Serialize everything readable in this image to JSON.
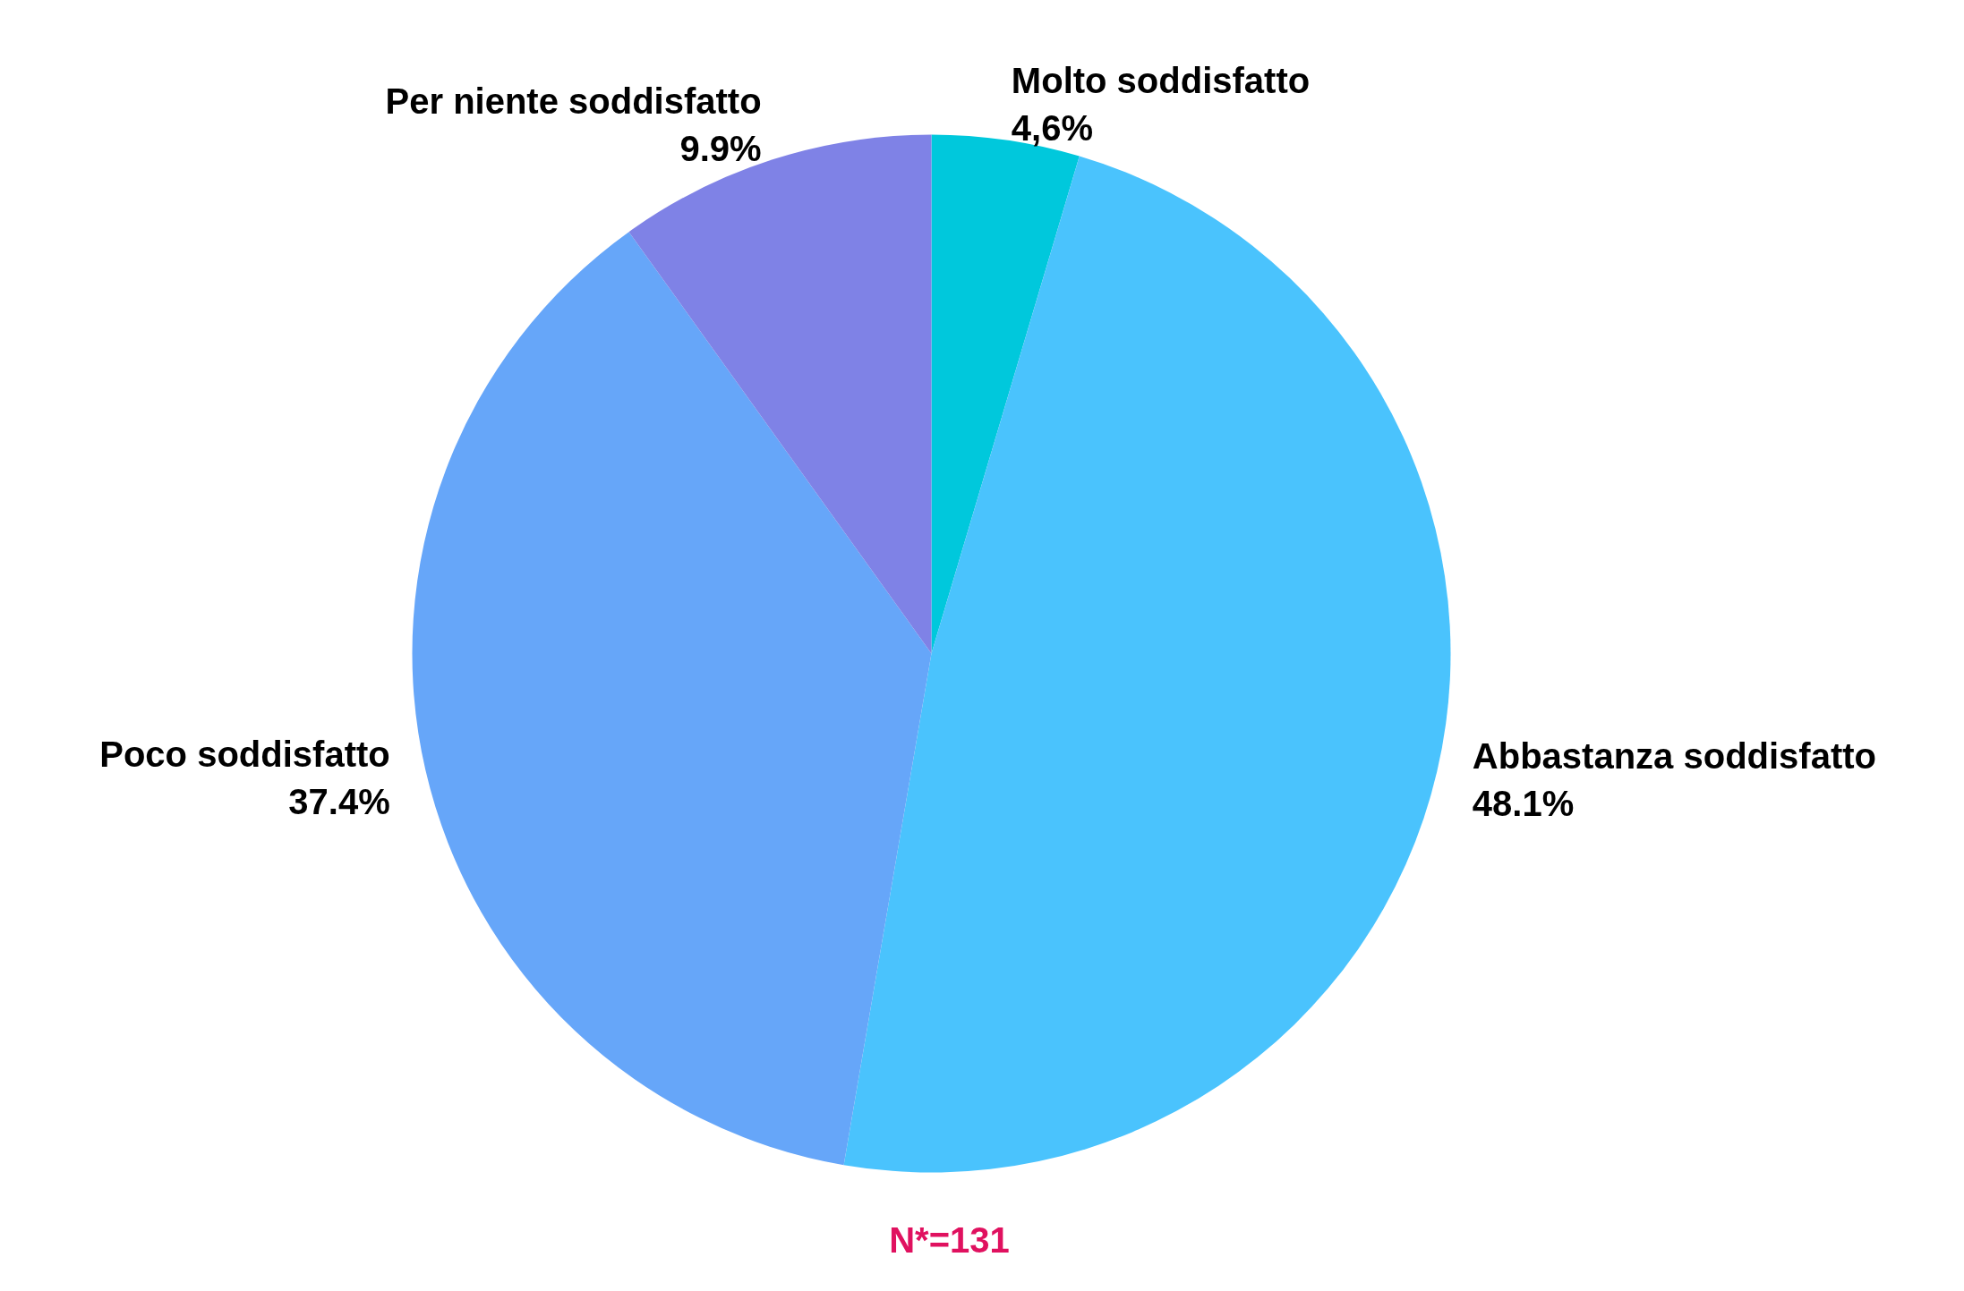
{
  "chart_data": {
    "type": "pie",
    "categories": [
      "Molto soddisfatto",
      "Abbastanza soddisfatto",
      "Poco soddisfatto",
      "Per niente soddisfatto"
    ],
    "values": [
      4.6,
      48.1,
      37.4,
      9.9
    ],
    "value_labels": [
      "4,6%",
      "48.1%",
      "37.4%",
      "9.9%"
    ],
    "colors": [
      "#00c8dc",
      "#4ac3fd",
      "#66a6f9",
      "#7f82e6"
    ],
    "annotations": [
      "N*=131"
    ]
  }
}
